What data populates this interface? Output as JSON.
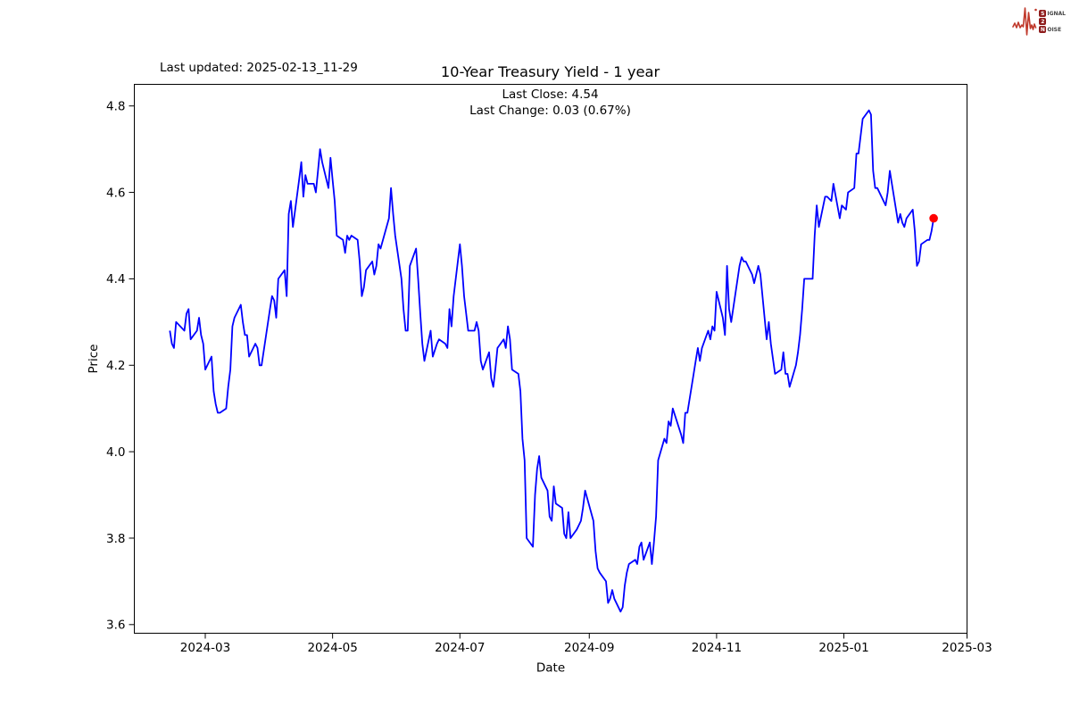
{
  "header": {
    "last_updated": "Last updated: 2025-02-13_11-29",
    "title": "10-Year Treasury Yield - 1 year",
    "subtitle_line1": "Last Close: 4.54",
    "subtitle_line2": "Last Change: 0.03 (0.67%)"
  },
  "logo": {
    "word1_initial": "S",
    "word1_rest": "IGNAL",
    "word2": "2",
    "word3_initial": "N",
    "word3_rest": "OISE",
    "waveform_color": "#c0392b",
    "badge_color": "#8e1b1b"
  },
  "chart_data": {
    "type": "line",
    "title": "10-Year Treasury Yield - 1 year",
    "xlabel": "Date",
    "ylabel": "Price",
    "last_close": 4.54,
    "last_change": 0.03,
    "last_change_pct": "0.67%",
    "line_color": "#0000ff",
    "marker_color": "#ff0000",
    "grid": false,
    "legend": "none",
    "x_tick_labels": [
      "2024-03",
      "2024-05",
      "2024-07",
      "2024-09",
      "2024-11",
      "2025-01",
      "2025-03"
    ],
    "y_tick_labels": [
      "3.6",
      "3.8",
      "4.0",
      "4.2",
      "4.4",
      "4.6",
      "4.8"
    ],
    "xlim": [
      "2024-01-27",
      "2025-03-01"
    ],
    "ylim": [
      3.58,
      4.85
    ],
    "series": [
      {
        "name": "10-Year Treasury Yield",
        "points": [
          [
            "2024-02-13",
            4.28
          ],
          [
            "2024-02-14",
            4.25
          ],
          [
            "2024-02-15",
            4.24
          ],
          [
            "2024-02-16",
            4.3
          ],
          [
            "2024-02-20",
            4.28
          ],
          [
            "2024-02-21",
            4.32
          ],
          [
            "2024-02-22",
            4.33
          ],
          [
            "2024-02-23",
            4.26
          ],
          [
            "2024-02-26",
            4.28
          ],
          [
            "2024-02-27",
            4.31
          ],
          [
            "2024-02-28",
            4.27
          ],
          [
            "2024-02-29",
            4.25
          ],
          [
            "2024-03-01",
            4.19
          ],
          [
            "2024-03-04",
            4.22
          ],
          [
            "2024-03-05",
            4.14
          ],
          [
            "2024-03-06",
            4.11
          ],
          [
            "2024-03-07",
            4.09
          ],
          [
            "2024-03-08",
            4.09
          ],
          [
            "2024-03-11",
            4.1
          ],
          [
            "2024-03-12",
            4.15
          ],
          [
            "2024-03-13",
            4.19
          ],
          [
            "2024-03-14",
            4.29
          ],
          [
            "2024-03-15",
            4.31
          ],
          [
            "2024-03-18",
            4.34
          ],
          [
            "2024-03-19",
            4.3
          ],
          [
            "2024-03-20",
            4.27
          ],
          [
            "2024-03-21",
            4.27
          ],
          [
            "2024-03-22",
            4.22
          ],
          [
            "2024-03-25",
            4.25
          ],
          [
            "2024-03-26",
            4.24
          ],
          [
            "2024-03-27",
            4.2
          ],
          [
            "2024-03-28",
            4.2
          ],
          [
            "2024-04-01",
            4.33
          ],
          [
            "2024-04-02",
            4.36
          ],
          [
            "2024-04-03",
            4.35
          ],
          [
            "2024-04-04",
            4.31
          ],
          [
            "2024-04-05",
            4.4
          ],
          [
            "2024-04-08",
            4.42
          ],
          [
            "2024-04-09",
            4.36
          ],
          [
            "2024-04-10",
            4.55
          ],
          [
            "2024-04-11",
            4.58
          ],
          [
            "2024-04-12",
            4.52
          ],
          [
            "2024-04-15",
            4.63
          ],
          [
            "2024-04-16",
            4.67
          ],
          [
            "2024-04-17",
            4.59
          ],
          [
            "2024-04-18",
            4.64
          ],
          [
            "2024-04-19",
            4.62
          ],
          [
            "2024-04-22",
            4.62
          ],
          [
            "2024-04-23",
            4.6
          ],
          [
            "2024-04-24",
            4.65
          ],
          [
            "2024-04-25",
            4.7
          ],
          [
            "2024-04-26",
            4.67
          ],
          [
            "2024-04-29",
            4.61
          ],
          [
            "2024-04-30",
            4.68
          ],
          [
            "2024-05-01",
            4.63
          ],
          [
            "2024-05-02",
            4.58
          ],
          [
            "2024-05-03",
            4.5
          ],
          [
            "2024-05-06",
            4.49
          ],
          [
            "2024-05-07",
            4.46
          ],
          [
            "2024-05-08",
            4.5
          ],
          [
            "2024-05-09",
            4.49
          ],
          [
            "2024-05-10",
            4.5
          ],
          [
            "2024-05-13",
            4.49
          ],
          [
            "2024-05-14",
            4.44
          ],
          [
            "2024-05-15",
            4.36
          ],
          [
            "2024-05-16",
            4.38
          ],
          [
            "2024-05-17",
            4.42
          ],
          [
            "2024-05-20",
            4.44
          ],
          [
            "2024-05-21",
            4.41
          ],
          [
            "2024-05-22",
            4.43
          ],
          [
            "2024-05-23",
            4.48
          ],
          [
            "2024-05-24",
            4.47
          ],
          [
            "2024-05-28",
            4.54
          ],
          [
            "2024-05-29",
            4.61
          ],
          [
            "2024-05-30",
            4.55
          ],
          [
            "2024-05-31",
            4.5
          ],
          [
            "2024-06-03",
            4.4
          ],
          [
            "2024-06-04",
            4.33
          ],
          [
            "2024-06-05",
            4.28
          ],
          [
            "2024-06-06",
            4.28
          ],
          [
            "2024-06-07",
            4.43
          ],
          [
            "2024-06-10",
            4.47
          ],
          [
            "2024-06-11",
            4.4
          ],
          [
            "2024-06-12",
            4.32
          ],
          [
            "2024-06-13",
            4.25
          ],
          [
            "2024-06-14",
            4.21
          ],
          [
            "2024-06-17",
            4.28
          ],
          [
            "2024-06-18",
            4.22
          ],
          [
            "2024-06-20",
            4.25
          ],
          [
            "2024-06-21",
            4.26
          ],
          [
            "2024-06-24",
            4.25
          ],
          [
            "2024-06-25",
            4.24
          ],
          [
            "2024-06-26",
            4.33
          ],
          [
            "2024-06-27",
            4.29
          ],
          [
            "2024-06-28",
            4.36
          ],
          [
            "2024-07-01",
            4.48
          ],
          [
            "2024-07-02",
            4.43
          ],
          [
            "2024-07-03",
            4.36
          ],
          [
            "2024-07-05",
            4.28
          ],
          [
            "2024-07-08",
            4.28
          ],
          [
            "2024-07-09",
            4.3
          ],
          [
            "2024-07-10",
            4.28
          ],
          [
            "2024-07-11",
            4.21
          ],
          [
            "2024-07-12",
            4.19
          ],
          [
            "2024-07-15",
            4.23
          ],
          [
            "2024-07-16",
            4.17
          ],
          [
            "2024-07-17",
            4.15
          ],
          [
            "2024-07-18",
            4.19
          ],
          [
            "2024-07-19",
            4.24
          ],
          [
            "2024-07-22",
            4.26
          ],
          [
            "2024-07-23",
            4.24
          ],
          [
            "2024-07-24",
            4.29
          ],
          [
            "2024-07-25",
            4.26
          ],
          [
            "2024-07-26",
            4.19
          ],
          [
            "2024-07-29",
            4.18
          ],
          [
            "2024-07-30",
            4.14
          ],
          [
            "2024-07-31",
            4.03
          ],
          [
            "2024-08-01",
            3.98
          ],
          [
            "2024-08-02",
            3.8
          ],
          [
            "2024-08-05",
            3.78
          ],
          [
            "2024-08-06",
            3.9
          ],
          [
            "2024-08-07",
            3.96
          ],
          [
            "2024-08-08",
            3.99
          ],
          [
            "2024-08-09",
            3.94
          ],
          [
            "2024-08-12",
            3.91
          ],
          [
            "2024-08-13",
            3.85
          ],
          [
            "2024-08-14",
            3.84
          ],
          [
            "2024-08-15",
            3.92
          ],
          [
            "2024-08-16",
            3.88
          ],
          [
            "2024-08-19",
            3.87
          ],
          [
            "2024-08-20",
            3.81
          ],
          [
            "2024-08-21",
            3.8
          ],
          [
            "2024-08-22",
            3.86
          ],
          [
            "2024-08-23",
            3.8
          ],
          [
            "2024-08-26",
            3.82
          ],
          [
            "2024-08-27",
            3.83
          ],
          [
            "2024-08-28",
            3.84
          ],
          [
            "2024-08-29",
            3.87
          ],
          [
            "2024-08-30",
            3.91
          ],
          [
            "2024-09-03",
            3.84
          ],
          [
            "2024-09-04",
            3.77
          ],
          [
            "2024-09-05",
            3.73
          ],
          [
            "2024-09-06",
            3.72
          ],
          [
            "2024-09-09",
            3.7
          ],
          [
            "2024-09-10",
            3.65
          ],
          [
            "2024-09-11",
            3.66
          ],
          [
            "2024-09-12",
            3.68
          ],
          [
            "2024-09-13",
            3.66
          ],
          [
            "2024-09-16",
            3.63
          ],
          [
            "2024-09-17",
            3.64
          ],
          [
            "2024-09-18",
            3.69
          ],
          [
            "2024-09-19",
            3.72
          ],
          [
            "2024-09-20",
            3.74
          ],
          [
            "2024-09-23",
            3.75
          ],
          [
            "2024-09-24",
            3.74
          ],
          [
            "2024-09-25",
            3.78
          ],
          [
            "2024-09-26",
            3.79
          ],
          [
            "2024-09-27",
            3.75
          ],
          [
            "2024-09-30",
            3.79
          ],
          [
            "2024-10-01",
            3.74
          ],
          [
            "2024-10-02",
            3.79
          ],
          [
            "2024-10-03",
            3.85
          ],
          [
            "2024-10-04",
            3.98
          ],
          [
            "2024-10-07",
            4.03
          ],
          [
            "2024-10-08",
            4.02
          ],
          [
            "2024-10-09",
            4.07
          ],
          [
            "2024-10-10",
            4.06
          ],
          [
            "2024-10-11",
            4.1
          ],
          [
            "2024-10-15",
            4.04
          ],
          [
            "2024-10-16",
            4.02
          ],
          [
            "2024-10-17",
            4.09
          ],
          [
            "2024-10-18",
            4.09
          ],
          [
            "2024-10-21",
            4.18
          ],
          [
            "2024-10-22",
            4.21
          ],
          [
            "2024-10-23",
            4.24
          ],
          [
            "2024-10-24",
            4.21
          ],
          [
            "2024-10-25",
            4.24
          ],
          [
            "2024-10-28",
            4.28
          ],
          [
            "2024-10-29",
            4.26
          ],
          [
            "2024-10-30",
            4.29
          ],
          [
            "2024-10-31",
            4.28
          ],
          [
            "2024-11-01",
            4.37
          ],
          [
            "2024-11-04",
            4.31
          ],
          [
            "2024-11-05",
            4.27
          ],
          [
            "2024-11-06",
            4.43
          ],
          [
            "2024-11-07",
            4.33
          ],
          [
            "2024-11-08",
            4.3
          ],
          [
            "2024-11-12",
            4.43
          ],
          [
            "2024-11-13",
            4.45
          ],
          [
            "2024-11-14",
            4.44
          ],
          [
            "2024-11-15",
            4.44
          ],
          [
            "2024-11-18",
            4.41
          ],
          [
            "2024-11-19",
            4.39
          ],
          [
            "2024-11-20",
            4.41
          ],
          [
            "2024-11-21",
            4.43
          ],
          [
            "2024-11-22",
            4.41
          ],
          [
            "2024-11-25",
            4.26
          ],
          [
            "2024-11-26",
            4.3
          ],
          [
            "2024-11-27",
            4.25
          ],
          [
            "2024-11-29",
            4.18
          ],
          [
            "2024-12-02",
            4.19
          ],
          [
            "2024-12-03",
            4.23
          ],
          [
            "2024-12-04",
            4.18
          ],
          [
            "2024-12-05",
            4.18
          ],
          [
            "2024-12-06",
            4.15
          ],
          [
            "2024-12-09",
            4.2
          ],
          [
            "2024-12-10",
            4.23
          ],
          [
            "2024-12-11",
            4.27
          ],
          [
            "2024-12-12",
            4.33
          ],
          [
            "2024-12-13",
            4.4
          ],
          [
            "2024-12-16",
            4.4
          ],
          [
            "2024-12-17",
            4.4
          ],
          [
            "2024-12-18",
            4.5
          ],
          [
            "2024-12-19",
            4.57
          ],
          [
            "2024-12-20",
            4.52
          ],
          [
            "2024-12-23",
            4.59
          ],
          [
            "2024-12-24",
            4.59
          ],
          [
            "2024-12-26",
            4.58
          ],
          [
            "2024-12-27",
            4.62
          ],
          [
            "2024-12-30",
            4.54
          ],
          [
            "2024-12-31",
            4.57
          ],
          [
            "2025-01-02",
            4.56
          ],
          [
            "2025-01-03",
            4.6
          ],
          [
            "2025-01-06",
            4.61
          ],
          [
            "2025-01-07",
            4.69
          ],
          [
            "2025-01-08",
            4.69
          ],
          [
            "2025-01-10",
            4.77
          ],
          [
            "2025-01-13",
            4.79
          ],
          [
            "2025-01-14",
            4.78
          ],
          [
            "2025-01-15",
            4.65
          ],
          [
            "2025-01-16",
            4.61
          ],
          [
            "2025-01-17",
            4.61
          ],
          [
            "2025-01-21",
            4.57
          ],
          [
            "2025-01-22",
            4.6
          ],
          [
            "2025-01-23",
            4.65
          ],
          [
            "2025-01-24",
            4.62
          ],
          [
            "2025-01-27",
            4.53
          ],
          [
            "2025-01-28",
            4.55
          ],
          [
            "2025-01-29",
            4.53
          ],
          [
            "2025-01-30",
            4.52
          ],
          [
            "2025-01-31",
            4.54
          ],
          [
            "2025-02-03",
            4.56
          ],
          [
            "2025-02-04",
            4.51
          ],
          [
            "2025-02-05",
            4.43
          ],
          [
            "2025-02-06",
            4.44
          ],
          [
            "2025-02-07",
            4.48
          ],
          [
            "2025-02-10",
            4.49
          ],
          [
            "2025-02-11",
            4.49
          ],
          [
            "2025-02-12",
            4.51
          ],
          [
            "2025-02-13",
            4.54
          ]
        ]
      }
    ]
  }
}
